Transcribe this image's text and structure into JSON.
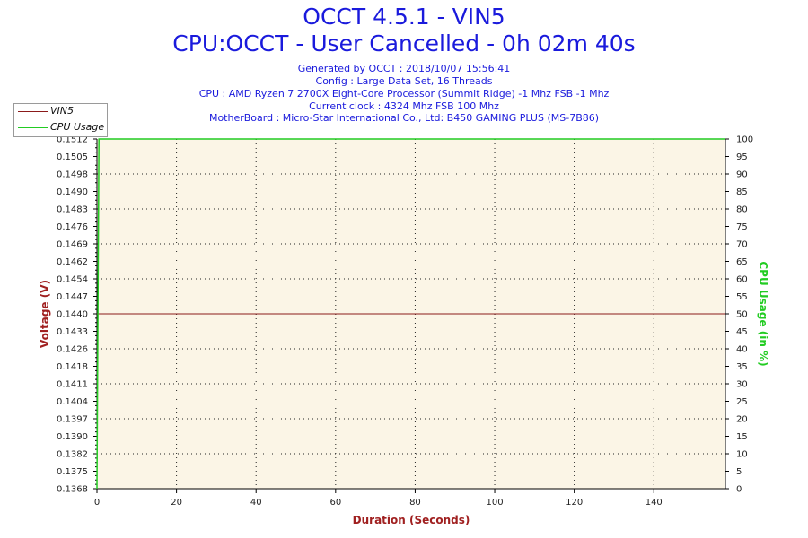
{
  "header": {
    "title": "OCCT 4.5.1 - VIN5",
    "subtitle": "CPU:OCCT - User Cancelled - 0h 02m 40s",
    "info_lines": [
      "Generated by OCCT : 2018/10/07 15:56:41",
      "Config : Large Data Set, 16 Threads",
      "CPU : AMD Ryzen 7 2700X Eight-Core Processor (Summit Ridge) -1 Mhz FSB -1 Mhz",
      "Current clock : 4324 Mhz FSB 100 Mhz",
      "MotherBoard : Micro-Star International Co., Ltd: B450 GAMING PLUS (MS-7B86)"
    ]
  },
  "colors": {
    "vin5": "#8b1a1a",
    "cpu_usage": "#22cc22",
    "plot_bg": "#fbf5e6",
    "axis_label_left": "#a02020",
    "axis_label_right": "#22cc22",
    "axis_label_x": "#a02020"
  },
  "chart_data": {
    "type": "line",
    "xlabel": "Duration (Seconds)",
    "ylabel": "Voltage (V)",
    "y2label": "CPU Usage (in %)",
    "xlim": [
      0,
      158
    ],
    "ylim": [
      0.1368,
      0.1512
    ],
    "y2lim": [
      0,
      100
    ],
    "x_ticks": [
      "0",
      "20",
      "40",
      "60",
      "80",
      "100",
      "120",
      "140"
    ],
    "y_ticks": [
      "0.1512",
      "0.1505",
      "0.1498",
      "0.1490",
      "0.1483",
      "0.1476",
      "0.1469",
      "0.1462",
      "0.1454",
      "0.1447",
      "0.1440",
      "0.1433",
      "0.1426",
      "0.1418",
      "0.1411",
      "0.1404",
      "0.1397",
      "0.1390",
      "0.1382",
      "0.1375",
      "0.1368"
    ],
    "y2_ticks": [
      "100",
      "95",
      "90",
      "85",
      "80",
      "75",
      "70",
      "65",
      "60",
      "55",
      "50",
      "45",
      "40",
      "35",
      "30",
      "25",
      "20",
      "15",
      "10",
      "5",
      "0"
    ],
    "grid": true,
    "legend_position": "top-left",
    "series": [
      {
        "name": "VIN5",
        "axis": "left",
        "x": [
          0,
          158
        ],
        "y": [
          0.144,
          0.144
        ]
      },
      {
        "name": "CPU Usage",
        "axis": "right",
        "x": [
          0,
          0.5,
          158
        ],
        "y": [
          0,
          100,
          100
        ]
      }
    ]
  }
}
